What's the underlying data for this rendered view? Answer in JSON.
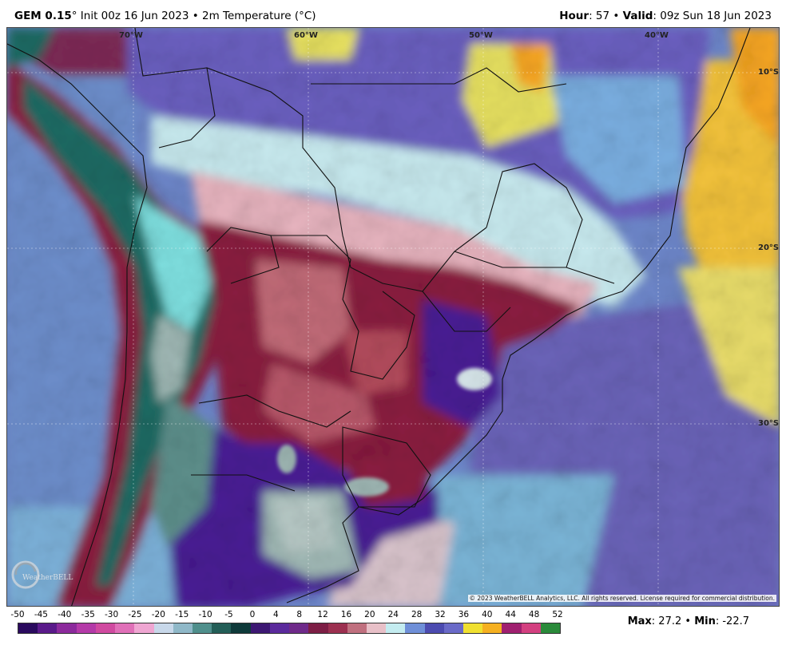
{
  "header": {
    "model": "GEM 0.15",
    "degree": "°",
    "init": " Init 00z 16 Jun 2023 • 2m Temperature (",
    "unit": "°C)",
    "hour_label": "Hour",
    "hour_value": ": 57 • ",
    "valid_label": "Valid",
    "valid_value": ": 09z Sun 18 Jun 2023"
  },
  "map": {
    "lon_labels": [
      "70°W",
      "60°W",
      "50°W",
      "40°W"
    ],
    "lat_labels": [
      "10°S",
      "20°S",
      "30°S"
    ],
    "copyright": "© 2023 WeatherBELL Analytics, LLC. All rights reserved. License required for commercial distribution.",
    "logo_text": "WeatherBELL"
  },
  "colorbar": {
    "ticks": [
      "-50",
      "-45",
      "-40",
      "-35",
      "-30",
      "-25",
      "-20",
      "-15",
      "-10",
      "-5",
      "0",
      "4",
      "8",
      "12",
      "16",
      "20",
      "24",
      "28",
      "32",
      "36",
      "40",
      "44",
      "48",
      "52"
    ],
    "colors": [
      "#2a0a5e",
      "#5a1a8a",
      "#8c2a9c",
      "#b43aa8",
      "#d04aa0",
      "#e070b8",
      "#efa6d2",
      "#c8d8ea",
      "#8fb8c8",
      "#4f8f8c",
      "#235e57",
      "#0e3a3a",
      "#3d1873",
      "#5b2a9c",
      "#6f2a8a",
      "#7d1e45",
      "#9c3050",
      "#c0707f",
      "#e8c0c8",
      "#c4ecf0",
      "#6f8fd8",
      "#4c4bb0",
      "#6a6ac8",
      "#f0e030",
      "#f5b020",
      "#a02070",
      "#d34080",
      "#2a8a3a"
    ]
  },
  "footer": {
    "max_label": "Max",
    "max_value": ": 27.2 • ",
    "min_label": "Min",
    "min_value": ": -22.7"
  },
  "palette": {
    "ocean_pacific": "#6a8ecb",
    "ocean_atlantic": "#6a63b8",
    "warm_yellow": "#f2c23a",
    "hot_orange": "#f5a524",
    "land_maroon": "#8a1f3f",
    "land_red": "#b24b5c",
    "land_pink": "#e6b3be",
    "land_cyan": "#c7e9ee",
    "cold_purple": "#4a1f94",
    "andes_teal": "#1d6b63",
    "andes_cyan": "#7fe0e0",
    "andes_gray": "#9fb7b4"
  }
}
